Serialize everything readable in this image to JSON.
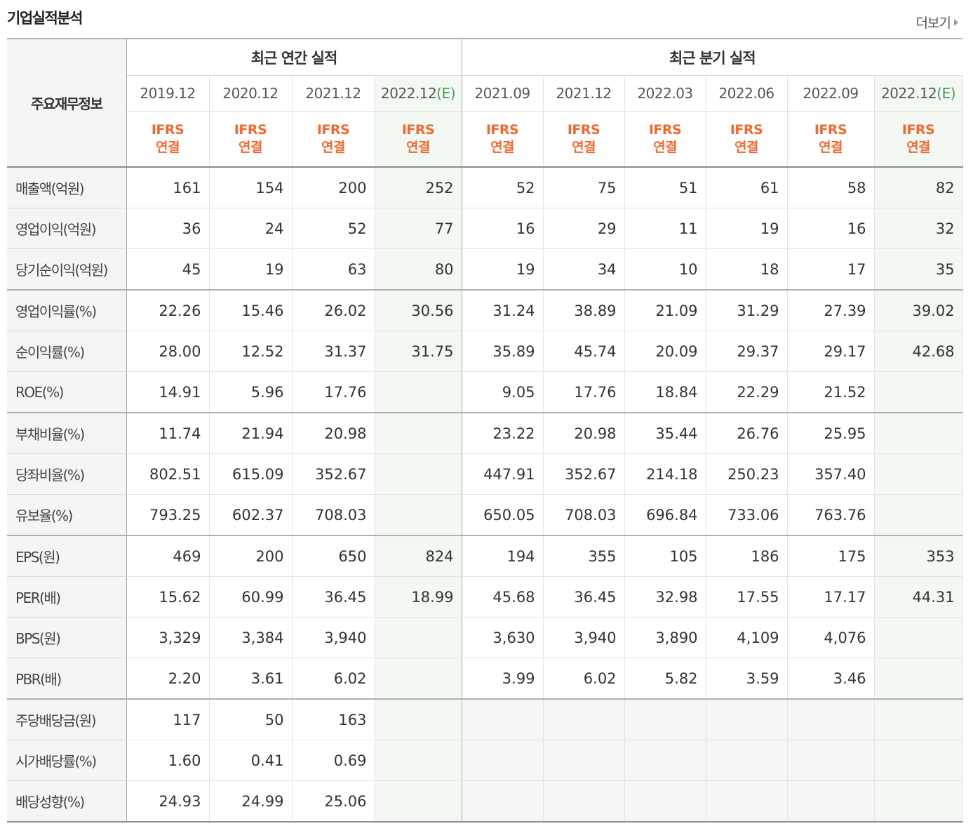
{
  "header": {
    "title": "기업실적분석",
    "more_label": "더보기"
  },
  "table": {
    "corner_label": "주요재무정보",
    "annual_group": "최근 연간 실적",
    "quarter_group": "최근 분기 실적",
    "periods": [
      {
        "date": "2019.12",
        "est": ""
      },
      {
        "date": "2020.12",
        "est": ""
      },
      {
        "date": "2021.12",
        "est": ""
      },
      {
        "date": "2022.12",
        "est": "(E)"
      },
      {
        "date": "2021.09",
        "est": ""
      },
      {
        "date": "2021.12",
        "est": ""
      },
      {
        "date": "2022.03",
        "est": ""
      },
      {
        "date": "2022.06",
        "est": ""
      },
      {
        "date": "2022.09",
        "est": ""
      },
      {
        "date": "2022.12",
        "est": "(E)"
      }
    ],
    "ifrs_line1": "IFRS",
    "ifrs_line2": "연결",
    "rows": [
      {
        "label": "매출액(억원)",
        "values": [
          "161",
          "154",
          "200",
          "252",
          "52",
          "75",
          "51",
          "61",
          "58",
          "82"
        ]
      },
      {
        "label": "영업이익(억원)",
        "values": [
          "36",
          "24",
          "52",
          "77",
          "16",
          "29",
          "11",
          "19",
          "16",
          "32"
        ]
      },
      {
        "label": "당기순이익(억원)",
        "values": [
          "45",
          "19",
          "63",
          "80",
          "19",
          "34",
          "10",
          "18",
          "17",
          "35"
        ]
      },
      {
        "label": "영업이익률(%)",
        "values": [
          "22.26",
          "15.46",
          "26.02",
          "30.56",
          "31.24",
          "38.89",
          "21.09",
          "31.29",
          "27.39",
          "39.02"
        ]
      },
      {
        "label": "순이익률(%)",
        "values": [
          "28.00",
          "12.52",
          "31.37",
          "31.75",
          "35.89",
          "45.74",
          "20.09",
          "29.37",
          "29.17",
          "42.68"
        ]
      },
      {
        "label": "ROE(%)",
        "values": [
          "14.91",
          "5.96",
          "17.76",
          "",
          "9.05",
          "17.76",
          "18.84",
          "22.29",
          "21.52",
          ""
        ]
      },
      {
        "label": "부채비율(%)",
        "values": [
          "11.74",
          "21.94",
          "20.98",
          "",
          "23.22",
          "20.98",
          "35.44",
          "26.76",
          "25.95",
          ""
        ]
      },
      {
        "label": "당좌비율(%)",
        "values": [
          "802.51",
          "615.09",
          "352.67",
          "",
          "447.91",
          "352.67",
          "214.18",
          "250.23",
          "357.40",
          ""
        ]
      },
      {
        "label": "유보율(%)",
        "values": [
          "793.25",
          "602.37",
          "708.03",
          "",
          "650.05",
          "708.03",
          "696.84",
          "733.06",
          "763.76",
          ""
        ]
      },
      {
        "label": "EPS(원)",
        "values": [
          "469",
          "200",
          "650",
          "824",
          "194",
          "355",
          "105",
          "186",
          "175",
          "353"
        ]
      },
      {
        "label": "PER(배)",
        "values": [
          "15.62",
          "60.99",
          "36.45",
          "18.99",
          "45.68",
          "36.45",
          "32.98",
          "17.55",
          "17.17",
          "44.31"
        ]
      },
      {
        "label": "BPS(원)",
        "values": [
          "3,329",
          "3,384",
          "3,940",
          "",
          "3,630",
          "3,940",
          "3,890",
          "4,109",
          "4,076",
          ""
        ]
      },
      {
        "label": "PBR(배)",
        "values": [
          "2.20",
          "3.61",
          "6.02",
          "",
          "3.99",
          "6.02",
          "5.82",
          "3.59",
          "3.46",
          ""
        ]
      },
      {
        "label": "주당배당금(원)",
        "values": [
          "117",
          "50",
          "163",
          "",
          "",
          "",
          "",
          "",
          "",
          ""
        ]
      },
      {
        "label": "시가배당률(%)",
        "values": [
          "1.60",
          "0.41",
          "0.69",
          "",
          "",
          "",
          "",
          "",
          "",
          ""
        ]
      },
      {
        "label": "배당성향(%)",
        "values": [
          "24.93",
          "24.99",
          "25.06",
          "",
          "",
          "",
          "",
          "",
          "",
          ""
        ]
      }
    ]
  },
  "colors": {
    "ifrs": "#ee6a2f",
    "estimate": "#4a9a5c",
    "estimate_bg": "#f3f8f3"
  }
}
